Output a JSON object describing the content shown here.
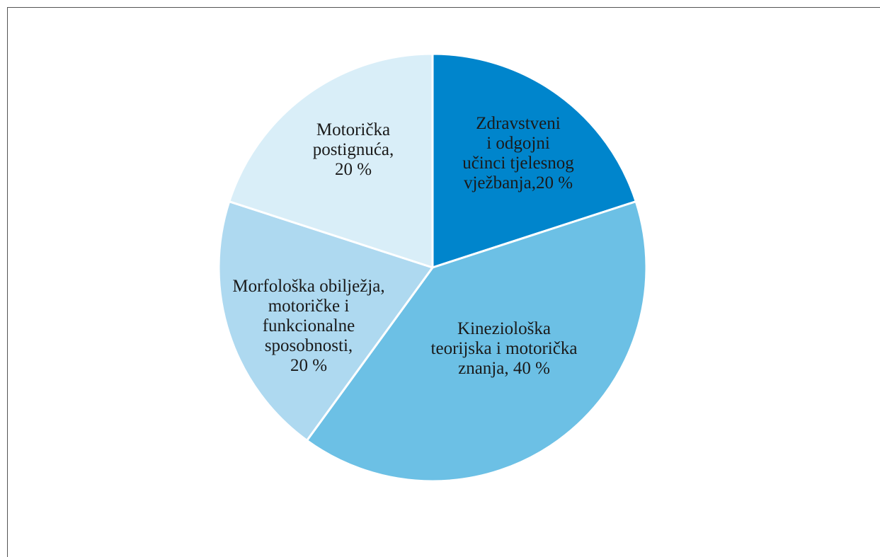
{
  "chart_data": {
    "type": "pie",
    "start_angle_deg": 0,
    "direction": "clockwise",
    "slice_border_color": "#ffffff",
    "frame_color": "#555555",
    "slices": [
      {
        "label_lines": [
          "Zdravstveni",
          "i odgojni",
          "učinci tjelesnog",
          "vježbanja,20 %"
        ],
        "value": 20,
        "color": "#0085CC"
      },
      {
        "label_lines": [
          "Kineziološka",
          "teorijska i motorička",
          "znanja, 40 %"
        ],
        "value": 40,
        "color": "#6CC0E5"
      },
      {
        "label_lines": [
          "Morfološka obilježja,",
          "motoričke i",
          "funkcionalne",
          "sposobnosti,",
          "20 %"
        ],
        "value": 20,
        "color": "#AED9F0"
      },
      {
        "label_lines": [
          "Motorička",
          "postignuća,",
          "20 %"
        ],
        "value": 20,
        "color": "#D9EEF8"
      }
    ]
  }
}
